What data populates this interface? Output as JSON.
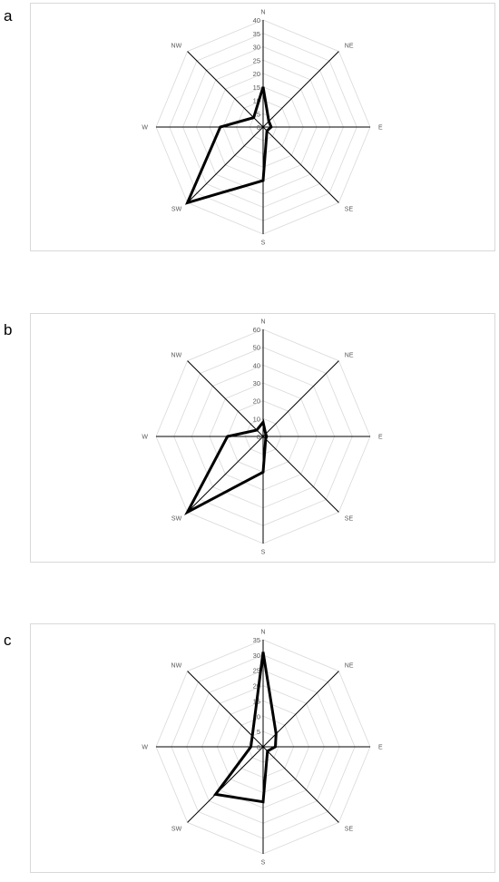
{
  "panels": [
    {
      "letter": "a"
    },
    {
      "letter": "b"
    },
    {
      "letter": "c"
    }
  ],
  "chart_data": [
    {
      "type": "radar",
      "categories": [
        "N",
        "NE",
        "E",
        "SE",
        "S",
        "SW",
        "W",
        "NW"
      ],
      "ticks": [
        "0",
        "5",
        "10",
        "15",
        "20",
        "25",
        "30",
        "35",
        "40"
      ],
      "rmax": 40,
      "series": [
        {
          "values": [
            15,
            3,
            3,
            2,
            20,
            40,
            16,
            5
          ]
        }
      ],
      "colors": {
        "grid": "#d9d9d9",
        "axis": "#000000",
        "series": "#000000"
      }
    },
    {
      "type": "radar",
      "categories": [
        "N",
        "NE",
        "E",
        "SE",
        "S",
        "SW",
        "W",
        "NW"
      ],
      "ticks": [
        "0",
        "10",
        "20",
        "30",
        "40",
        "50",
        "60"
      ],
      "rmax": 60,
      "series": [
        {
          "values": [
            8,
            2,
            2,
            2,
            20,
            60,
            20,
            5
          ]
        }
      ],
      "colors": {
        "grid": "#d9d9d9",
        "axis": "#000000",
        "series": "#000000"
      }
    },
    {
      "type": "radar",
      "categories": [
        "N",
        "NE",
        "E",
        "SE",
        "S",
        "SW",
        "W",
        "NW"
      ],
      "ticks": [
        "0",
        "5",
        "10",
        "15",
        "20",
        "25",
        "30",
        "35"
      ],
      "rmax": 35,
      "series": [
        {
          "values": [
            31,
            6,
            4,
            2,
            18,
            22,
            4,
            5
          ]
        }
      ],
      "colors": {
        "grid": "#d9d9d9",
        "axis": "#000000",
        "series": "#000000"
      }
    }
  ]
}
